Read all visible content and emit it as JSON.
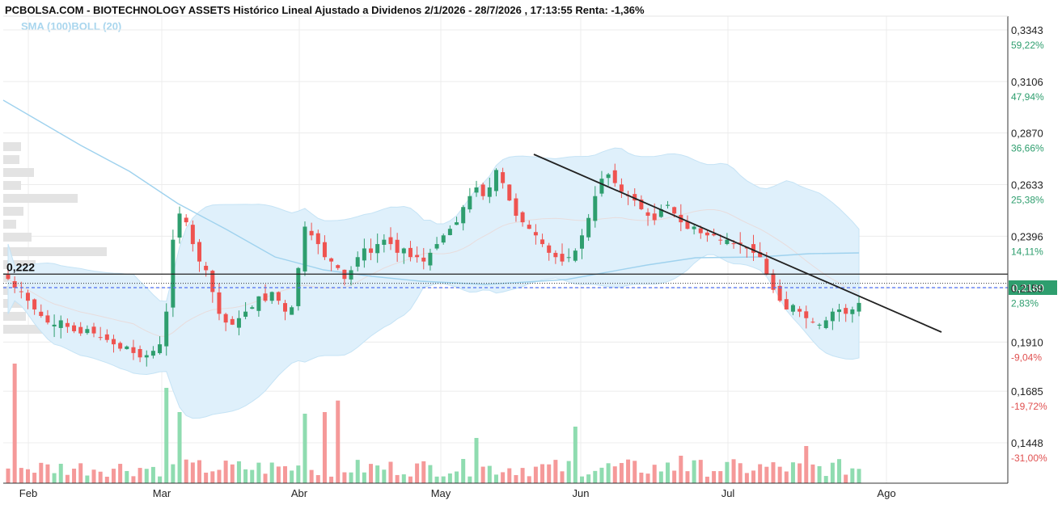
{
  "header": {
    "title": "PCBOLSA.COM - BIOTECHNOLOGY ASSETS Histórico Lineal Ajustado a Dividenos 2/1/2026 - 28/7/2026 , 17:13:55 Renta: -1,36%",
    "legend_sma": "SMA (100)",
    "legend_boll": "BOLL (20)"
  },
  "colors": {
    "up": "#2e9e6e",
    "down": "#ef5350",
    "vol_up": "#8fdcb0",
    "vol_down": "#f59999",
    "band_fill": "#dff0fb",
    "sma": "#9fd2ee",
    "current_price_line": "#4f6ff0",
    "current_price_box": "#2e9e6e",
    "pct_up": "#2e9e6e",
    "pct_down": "#e05050"
  },
  "chart_data": {
    "type": "candlestick",
    "y_axis_ticks": [
      {
        "price": "0,3343",
        "pct": "59,22%",
        "value": 0.3343
      },
      {
        "price": "0,3106",
        "pct": "47,94%",
        "value": 0.3106
      },
      {
        "price": "0,2870",
        "pct": "36,66%",
        "value": 0.287
      },
      {
        "price": "0,2633",
        "pct": "25,38%",
        "value": 0.2633
      },
      {
        "price": "0,2396",
        "pct": "14,11%",
        "value": 0.2396
      },
      {
        "price": "0,2159",
        "pct": "2,83%",
        "value": 0.2159
      },
      {
        "price": "0,1910",
        "pct": "-9,04%",
        "value": 0.191
      },
      {
        "price": "0,1685",
        "pct": "-19,72%",
        "value": 0.1685
      },
      {
        "price": "0,1448",
        "pct": "-31,00%",
        "value": 0.1448
      }
    ],
    "x_axis_ticks": [
      "Feb",
      "Mar",
      "Abr",
      "May",
      "Jun",
      "Jul",
      "Ago"
    ],
    "current_price_label": "0,2160",
    "current_price": 0.216,
    "support_level_label": "0,222",
    "support_level": 0.2222,
    "reference_level": 0.218
  }
}
